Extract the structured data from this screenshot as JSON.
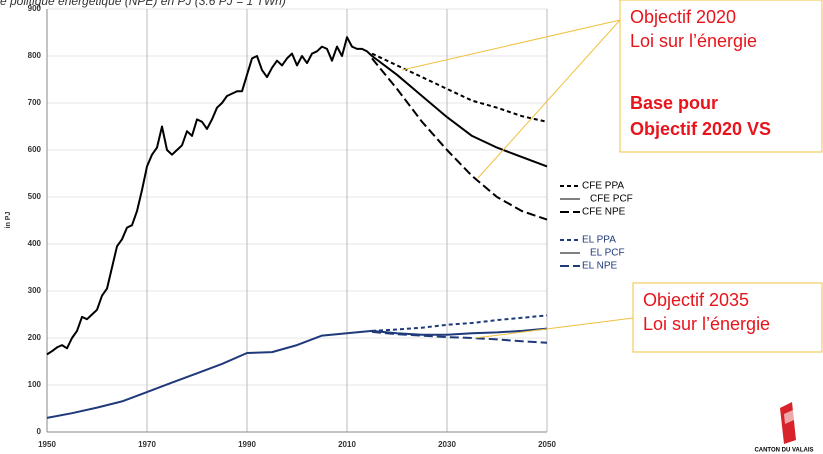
{
  "chart_data": {
    "type": "line",
    "title": "e politique énergétique (NPE) en PJ (3.6 PJ = 1 TWh)",
    "y_label": "in PJ",
    "xlim": [
      1950,
      2050
    ],
    "xticks": [
      1950,
      1970,
      1990,
      2010,
      2030,
      2050
    ],
    "ylim": [
      0,
      900
    ],
    "yticks": [
      0,
      100,
      200,
      300,
      400,
      500,
      600,
      700,
      800,
      900
    ],
    "grid": true,
    "series": [
      {
        "name": "CFE PPA",
        "color": "#000000",
        "dash": "short",
        "width": 2,
        "x": [
          2015,
          2020,
          2025,
          2030,
          2035,
          2040,
          2045,
          2050
        ],
        "values": [
          805,
          780,
          755,
          730,
          705,
          690,
          672,
          660
        ]
      },
      {
        "name": "CFE PCF",
        "color": "#000000",
        "dash": "solid",
        "width": 2,
        "x": [
          1950,
          1951,
          1952,
          1953,
          1954,
          1955,
          1956,
          1957,
          1958,
          1959,
          1960,
          1961,
          1962,
          1963,
          1964,
          1965,
          1966,
          1967,
          1968,
          1969,
          1970,
          1971,
          1972,
          1973,
          1974,
          1975,
          1976,
          1977,
          1978,
          1979,
          1980,
          1981,
          1982,
          1983,
          1984,
          1985,
          1986,
          1987,
          1988,
          1989,
          1990,
          1991,
          1992,
          1993,
          1994,
          1995,
          1996,
          1997,
          1998,
          1999,
          2000,
          2001,
          2002,
          2003,
          2004,
          2005,
          2006,
          2007,
          2008,
          2009,
          2010,
          2011,
          2012,
          2013,
          2014,
          2015,
          2020,
          2025,
          2030,
          2035,
          2040,
          2045,
          2050
        ],
        "values": [
          165,
          172,
          180,
          185,
          178,
          200,
          215,
          245,
          240,
          250,
          260,
          290,
          305,
          350,
          395,
          410,
          435,
          440,
          470,
          515,
          565,
          590,
          605,
          650,
          600,
          590,
          600,
          610,
          640,
          630,
          665,
          660,
          645,
          665,
          690,
          700,
          715,
          720,
          725,
          725,
          760,
          795,
          800,
          770,
          755,
          775,
          790,
          780,
          795,
          805,
          780,
          800,
          785,
          805,
          810,
          820,
          815,
          790,
          820,
          800,
          840,
          820,
          815,
          815,
          810,
          800,
          760,
          715,
          670,
          630,
          605,
          585,
          565
        ]
      },
      {
        "name": "CFE NPE",
        "color": "#000000",
        "dash": "long",
        "width": 2,
        "x": [
          2015,
          2020,
          2025,
          2030,
          2035,
          2040,
          2045,
          2050
        ],
        "values": [
          795,
          730,
          660,
          600,
          545,
          500,
          470,
          452
        ]
      },
      {
        "name": "EL PPA",
        "color": "#1f3a7a",
        "dash": "short",
        "width": 2,
        "x": [
          2015,
          2020,
          2025,
          2030,
          2035,
          2040,
          2045,
          2050
        ],
        "values": [
          215,
          218,
          222,
          228,
          232,
          238,
          243,
          248
        ]
      },
      {
        "name": "EL PCF",
        "color": "#1f3a7a",
        "dash": "solid",
        "width": 2,
        "x": [
          1950,
          1955,
          1960,
          1965,
          1970,
          1975,
          1980,
          1985,
          1990,
          1995,
          2000,
          2005,
          2010,
          2015,
          2020,
          2025,
          2030,
          2035,
          2040,
          2045,
          2050
        ],
        "values": [
          30,
          40,
          52,
          65,
          85,
          105,
          125,
          145,
          168,
          170,
          185,
          205,
          210,
          215,
          210,
          207,
          207,
          210,
          212,
          215,
          220
        ]
      },
      {
        "name": "EL NPE",
        "color": "#1f3a7a",
        "dash": "long",
        "width": 2,
        "x": [
          2015,
          2020,
          2025,
          2030,
          2035,
          2040,
          2045,
          2050
        ],
        "values": [
          213,
          208,
          205,
          202,
          200,
          197,
          193,
          190
        ]
      }
    ],
    "annotations": [
      {
        "text": [
          "Objectif 2020",
          "Loi sur l’énergie"
        ],
        "bold_text": [
          "Base pour",
          "Objectif 2020 VS"
        ]
      },
      {
        "text": [
          "Objectif 2035",
          "Loi sur l’énergie"
        ],
        "bold_text": []
      }
    ],
    "logo": "CANTON DU VALAIS"
  }
}
